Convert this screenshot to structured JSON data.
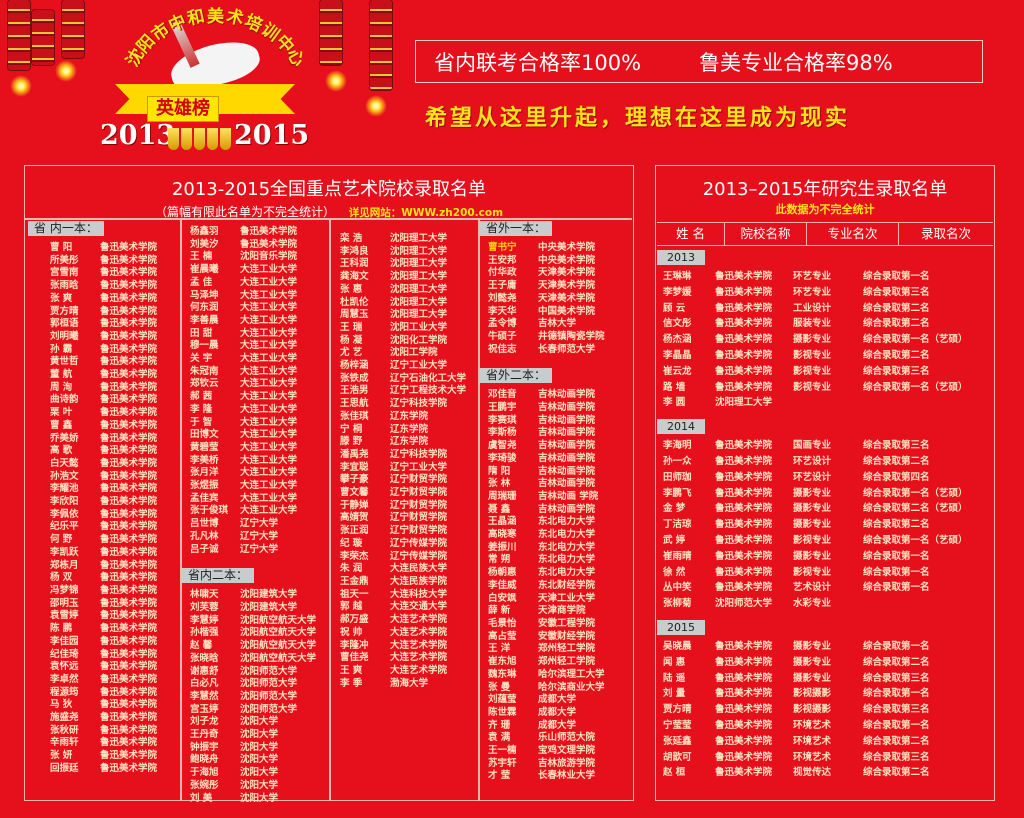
{
  "header": {
    "org_name": "沈阳市中和美术培训中心",
    "honor_title": "英雄榜",
    "year_start": "2013",
    "year_end": "2015",
    "stat1": "省内联考合格率100%",
    "stat2": "鲁美专业合格率98%",
    "slogan": "希望从这里升起，理想在这里成为现实"
  },
  "colors": {
    "background": "#e5101b",
    "accent_yellow": "#ffe21a",
    "section_tag": "#c9cccc"
  },
  "left_panel": {
    "title": "2013-2015全国重点艺术院校录取名单",
    "note": "（篇幅有限此名单为不完全统计）",
    "website": "详见网站：WWW.zh200.com",
    "columns": [
      {
        "sections": [
          {
            "header": "省 内一本：",
            "rows": [
              [
                "曹 阳",
                "鲁迅美术学院"
              ],
              [
                "所美彤",
                "鲁迅美术学院"
              ],
              [
                "宫雪南",
                "鲁迅美术学院"
              ],
              [
                "张雨晗",
                "鲁迅美术学院"
              ],
              [
                "张 爽",
                "鲁迅美术学院"
              ],
              [
                "贾方晴",
                "鲁迅美术学院"
              ],
              [
                "郭桓语",
                "鲁迅美术学院"
              ],
              [
                "刘明曦",
                "鲁迅美术学院"
              ],
              [
                "孙 霸",
                "鲁迅美术学院"
              ],
              [
                "黄世哲",
                "鲁迅美术学院"
              ],
              [
                "董 航",
                "鲁迅美术学院"
              ],
              [
                "周 洵",
                "鲁迅美术学院"
              ],
              [
                "曲诗韵",
                "鲁迅美术学院"
              ],
              [
                "栗 叶",
                "鲁迅美术学院"
              ],
              [
                "曹 鑫",
                "鲁迅美术学院"
              ],
              [
                "乔美娇",
                "鲁迅美术学院"
              ],
              [
                "高 歌",
                "鲁迅美术学院"
              ],
              [
                "白天懿",
                "鲁迅美术学院"
              ],
              [
                "孙浩文",
                "鲁迅美术学院"
              ],
              [
                "李耀池",
                "鲁迅美术学院"
              ],
              [
                "李欣阳",
                "鲁迅美术学院"
              ],
              [
                "李佩依",
                "鲁迅美术学院"
              ],
              [
                "纪乐平",
                "鲁迅美术学院"
              ],
              [
                "何 野",
                "鲁迅美术学院"
              ],
              [
                "李凯跃",
                "鲁迅美术学院"
              ],
              [
                "郑栋月",
                "鲁迅美术学院"
              ],
              [
                "杨 双",
                "鲁迅美术学院"
              ],
              [
                "冯梦锦",
                "鲁迅美术学院"
              ],
              [
                "邵明玉",
                "鲁迅美术学院"
              ],
              [
                "袁雪婷",
                "鲁迅美术学院"
              ],
              [
                "陈 鹏",
                "鲁迅美术学院"
              ],
              [
                "李佳园",
                "鲁迅美术学院"
              ],
              [
                "纪佳琦",
                "鲁迅美术学院"
              ],
              [
                "袁怀远",
                "鲁迅美术学院"
              ],
              [
                "李卓然",
                "鲁迅美术学院"
              ],
              [
                "程源筠",
                "鲁迅美术学院"
              ],
              [
                "马 狄",
                "鲁迅美术学院"
              ],
              [
                "施盛尧",
                "鲁迅美术学院"
              ],
              [
                "张秋研",
                "鲁迅美术学院"
              ],
              [
                "辛雨轩",
                "鲁迅美术学院"
              ],
              [
                "张 妍",
                "鲁迅美术学院"
              ],
              [
                "回振廷",
                "鲁迅美术学院"
              ]
            ]
          }
        ]
      },
      {
        "sections": [
          {
            "header": "",
            "rows": [
              [
                "杨鑫羽",
                "鲁迅美术学院"
              ],
              [
                "刘美汐",
                "鲁迅美术学院"
              ],
              [
                "王 楠",
                "沈阳音乐学院"
              ],
              [
                "崔晨曦",
                "大连工业大学"
              ],
              [
                "孟 佳",
                "大连工业大学"
              ],
              [
                "马泽坤",
                "大连工业大学"
              ],
              [
                "何东润",
                "大连工业大学"
              ],
              [
                "李善晨",
                "大连工业大学"
              ],
              [
                "田 甜",
                "大连工业大学"
              ],
              [
                "穆一晨",
                "大连工业大学"
              ],
              [
                "关 宇",
                "大连工业大学"
              ],
              [
                "朱冠南",
                "大连工业大学"
              ],
              [
                "郑钦云",
                "大连工业大学"
              ],
              [
                "郝 茜",
                "大连工业大学"
              ],
              [
                "李 隆",
                "大连工业大学"
              ],
              [
                "于 智",
                "大连工业大学"
              ],
              [
                "田博文",
                "大连工业大学"
              ],
              [
                "黄碧莹",
                "大连工业大学"
              ],
              [
                "李美桥",
                "大连工业大学"
              ],
              [
                "张月洋",
                "大连工业大学"
              ],
              [
                "张煜振",
                "大连工业大学"
              ],
              [
                "孟佳宾",
                "大连工业大学"
              ],
              [
                "张于俊琪",
                "大连工业大学"
              ],
              [
                "吕世博",
                "辽宁大学"
              ],
              [
                "孔凡林",
                "辽宁大学"
              ],
              [
                "吕子诚",
                "辽宁大学"
              ]
            ]
          },
          {
            "header": "省内二本：",
            "rows": [
              [
                "林啸天",
                "沈阳建筑大学"
              ],
              [
                "刘芙蓉",
                "沈阳建筑大学"
              ],
              [
                "李慧婷",
                "沈阳航空航天大学"
              ],
              [
                "孙楷强",
                "沈阳航空航天大学"
              ],
              [
                "赵 馨",
                "沈阳航空航天大学"
              ],
              [
                "张晓晗",
                "沈阳航空航天大学"
              ],
              [
                "谢惠舒",
                "沈阳师范大学"
              ],
              [
                "白必凡",
                "沈阳师范大学"
              ],
              [
                "李慧然",
                "沈阳师范大学"
              ],
              [
                "宫玉婷",
                "沈阳师范大学"
              ],
              [
                "刘子龙",
                "沈阳大学"
              ],
              [
                "王丹奇",
                "沈阳大学"
              ],
              [
                "钟振宇",
                "沈阳大学"
              ],
              [
                "鲍晓舟",
                "沈阳大学"
              ],
              [
                "于海旭",
                "沈阳大学"
              ],
              [
                "张婉彤",
                "沈阳大学"
              ],
              [
                "刘 美",
                "沈阳大学"
              ]
            ]
          }
        ]
      },
      {
        "sections": [
          {
            "header": "",
            "rows": [
              [
                "栾 浩",
                "沈阳理工大学"
              ],
              [
                "李鸿良",
                "沈阳理工大学"
              ],
              [
                "王科润",
                "沈阳理工大学"
              ],
              [
                "龚海文",
                "沈阳理工大学"
              ],
              [
                "张 惠",
                "沈阳理工大学"
              ],
              [
                "杜凯伦",
                "沈阳理工大学"
              ],
              [
                "周慧玉",
                "沈阳理工大学"
              ],
              [
                "王 瑞",
                "沈阳工业大学"
              ],
              [
                "杨 凝",
                "沈阳化工学院"
              ],
              [
                "尤 艺",
                "沈阳工学院"
              ],
              [
                "杨梓涵",
                "辽宁工业大学"
              ],
              [
                "张铁成",
                "辽宁石油化工大学"
              ],
              [
                "王浩男",
                "辽宁工程技术大学"
              ],
              [
                "王思航",
                "辽宁科技学院"
              ],
              [
                "张佳琪",
                "辽东学院"
              ],
              [
                "宁 桐",
                "辽东学院"
              ],
              [
                "滕 野",
                "辽东学院"
              ],
              [
                "潘禹尧",
                "辽宁科技学院"
              ],
              [
                "李宜聪",
                "辽宁工业大学"
              ],
              [
                "攀子豪",
                "辽宁财贸学院"
              ],
              [
                "曹文馨",
                "辽宁财贸学院"
              ],
              [
                "于静婵",
                "辽宁财贸学院"
              ],
              [
                "高婧贺",
                "辽宁财贸学院"
              ],
              [
                "张正润",
                "辽宁财贸学院"
              ],
              [
                "纪 璇",
                "辽宁传媒学院"
              ],
              [
                "李荣杰",
                "辽宁传媒学院"
              ],
              [
                "朱 润",
                "大连民族大学"
              ],
              [
                "王金鼎",
                "大连民族学院"
              ],
              [
                "祖天一",
                "大连科技大学"
              ],
              [
                "郭 越",
                "大连交通大学"
              ],
              [
                "郝万盛",
                "大连艺术学院"
              ],
              [
                "祝 帅",
                "大连艺术学院"
              ],
              [
                "李隆冲",
                "大连艺术学院"
              ],
              [
                "曹佳尧",
                "大连艺术学院"
              ],
              [
                "王 爽",
                "大连艺术学院"
              ],
              [
                "李 季",
                "渤海大学"
              ]
            ]
          }
        ]
      },
      {
        "sections": [
          {
            "header": "省外一本：",
            "rows": [
              [
                "曹书宁",
                "中央美术学院"
              ],
              [
                "王安邦",
                "中央美术学院"
              ],
              [
                "付华政",
                "天津美术学院"
              ],
              [
                "王子庸",
                "天津美术学院"
              ],
              [
                "刘懿尧",
                "天津美术学院"
              ],
              [
                "李天华",
                "中国美术学院"
              ],
              [
                "孟令博",
                "吉林大学"
              ],
              [
                "牛硕子",
                "井德镇陶瓷学院"
              ],
              [
                "祝佳志",
                "长春师范大学"
              ]
            ]
          },
          {
            "header": "省外二本：",
            "rows": [
              [
                "邓佳音",
                "吉林动画学院"
              ],
              [
                "王鹏宇",
                "吉林动画学院"
              ],
              [
                "李赛琪",
                "吉林动画学院"
              ],
              [
                "李斯杨",
                "吉林动画学院"
              ],
              [
                "虞智尧",
                "吉林动画学院"
              ],
              [
                "李琦骏",
                "吉林动画学院"
              ],
              [
                "隋 阳",
                "吉林动画学院"
              ],
              [
                "张 林",
                "吉林动画学院"
              ],
              [
                "周瑞珊",
                "吉林动画 学院"
              ],
              [
                "聂 鑫",
                "吉林动画学院"
              ],
              [
                "王晶涵",
                "东北电力大学"
              ],
              [
                "高晓寒",
                "东北电力大学"
              ],
              [
                "姜振川",
                "东北电力大学"
              ],
              [
                "常 朔",
                "东北电力大学"
              ],
              [
                "杨朝惠",
                "东北电力大学"
              ],
              [
                "李佳威",
                "东北财经学院"
              ],
              [
                "白安飒",
                "天津工业大学"
              ],
              [
                "薛 新",
                "天津商学院"
              ],
              [
                "毛景怡",
                "安徽工程学院"
              ],
              [
                "高占莹",
                "安徽财经学院"
              ],
              [
                "王 洋",
                "郑州轻工学院"
              ],
              [
                "崔东旭",
                "郑州轻工学院"
              ],
              [
                "魏东琳",
                "哈尔滨理工大学"
              ],
              [
                "张 曼",
                "哈尔滨商业大学"
              ],
              [
                "刘蕴莹",
                "成都大学"
              ],
              [
                "陈世霖",
                "成都大学"
              ],
              [
                "齐 珊",
                "成都大学"
              ],
              [
                "袁 满",
                "乐山师范大院"
              ],
              [
                "王一楠",
                "宝鸡文理学院"
              ],
              [
                "苏宇轩",
                "吉林旅游学院"
              ],
              [
                "才 莹",
                "长春林业大学"
              ]
            ]
          }
        ]
      }
    ]
  },
  "right_panel": {
    "title": "2013–2015年研究生录取名单",
    "note": "此数据为不完全统计",
    "columns": [
      "姓 名",
      "院校名称",
      "专业名次",
      "录取名次"
    ],
    "groups": [
      {
        "year": "2013",
        "rows": [
          [
            "王琳琳",
            "鲁迅美术学院",
            "环艺专业",
            "综合录取第一名"
          ],
          [
            "李梦媛",
            "鲁迅美术学院",
            "环艺专业",
            "综合录取第三名"
          ],
          [
            "顾 云",
            "鲁迅美术学院",
            "工业设计",
            "综合录取第二名"
          ],
          [
            "信文彤",
            "鲁迅美术学院",
            "服装专业",
            "综合录取第二名"
          ],
          [
            "杨杰涵",
            "鲁迅美术学院",
            "摄影专业",
            "综合录取第一名（艺硕）"
          ],
          [
            "李晶晶",
            "鲁迅美术学院",
            "影视专业",
            "综合录取第二名"
          ],
          [
            "崔云龙",
            "鲁迅美术学院",
            "影视专业",
            "综合录取第三名"
          ],
          [
            "路 墙",
            "鲁迅美术学院",
            "影视专业",
            "综合录取第一名（艺硕）"
          ],
          [
            "李 圆",
            "沈阳理工大学",
            "",
            ""
          ]
        ]
      },
      {
        "year": "2014",
        "rows": [
          [
            "李海明",
            "鲁迅美术学院",
            "国画专业",
            "综合录取第三名"
          ],
          [
            "孙一众",
            "鲁迅美术学院",
            "环艺设计",
            "综合录取第二名"
          ],
          [
            "田师珈",
            "鲁迅美术学院",
            "环艺设计",
            "综合录取第四名"
          ],
          [
            "李鹏飞",
            "鲁迅美术学院",
            "摄影专业",
            "综合录取第一名（艺硕）"
          ],
          [
            "金 梦",
            "鲁迅美术学院",
            "摄影专业",
            "综合录取第二名（艺硕）"
          ],
          [
            "丁洁琼",
            "鲁迅美术学院",
            "摄影专业",
            "综合录取第二名"
          ],
          [
            "武 婷",
            "鲁迅美术学院",
            "影视专业",
            "综合录取第一名（艺硕）"
          ],
          [
            "崔雨晴",
            "鲁迅美术学院",
            "摄影专业",
            "综合录取第一名"
          ],
          [
            "徐 然",
            "鲁迅美术学院",
            "影视专业",
            "综合录取第一名"
          ],
          [
            "丛中笑",
            "鲁迅美术学院",
            "艺术设计",
            "综合录取第一名"
          ],
          [
            "张柳菊",
            "沈阳师范大学",
            "水彩专业",
            ""
          ]
        ]
      },
      {
        "year": "2015",
        "rows": [
          [
            "吴晓晨",
            "鲁迅美术学院",
            "摄影专业",
            "综合录取第一名"
          ],
          [
            "闻 惠",
            "鲁迅美术学院",
            "摄影专业",
            "综合录取第二名"
          ],
          [
            "陆 遥",
            "鲁迅美术学院",
            "摄影专业",
            "综合录取第三名"
          ],
          [
            "刘 量",
            "鲁迅美术学院",
            "影视摄影",
            "综合录取第一名"
          ],
          [
            "贾方晴",
            "鲁迅美术学院",
            "影视摄影",
            "综合录取第三名"
          ],
          [
            "宁莹莹",
            "鲁迅美术学院",
            "环境艺术",
            "综合录取第一名"
          ],
          [
            "张延鑫",
            "鲁迅美术学院",
            "环境艺术",
            "综合录取第二名"
          ],
          [
            "胡歆可",
            "鲁迅美术学院",
            "环境艺术",
            "综合录取第三名"
          ],
          [
            "赵 桓",
            "鲁迅美术学院",
            "视觉传达",
            "综合录取第二名"
          ]
        ]
      }
    ]
  }
}
